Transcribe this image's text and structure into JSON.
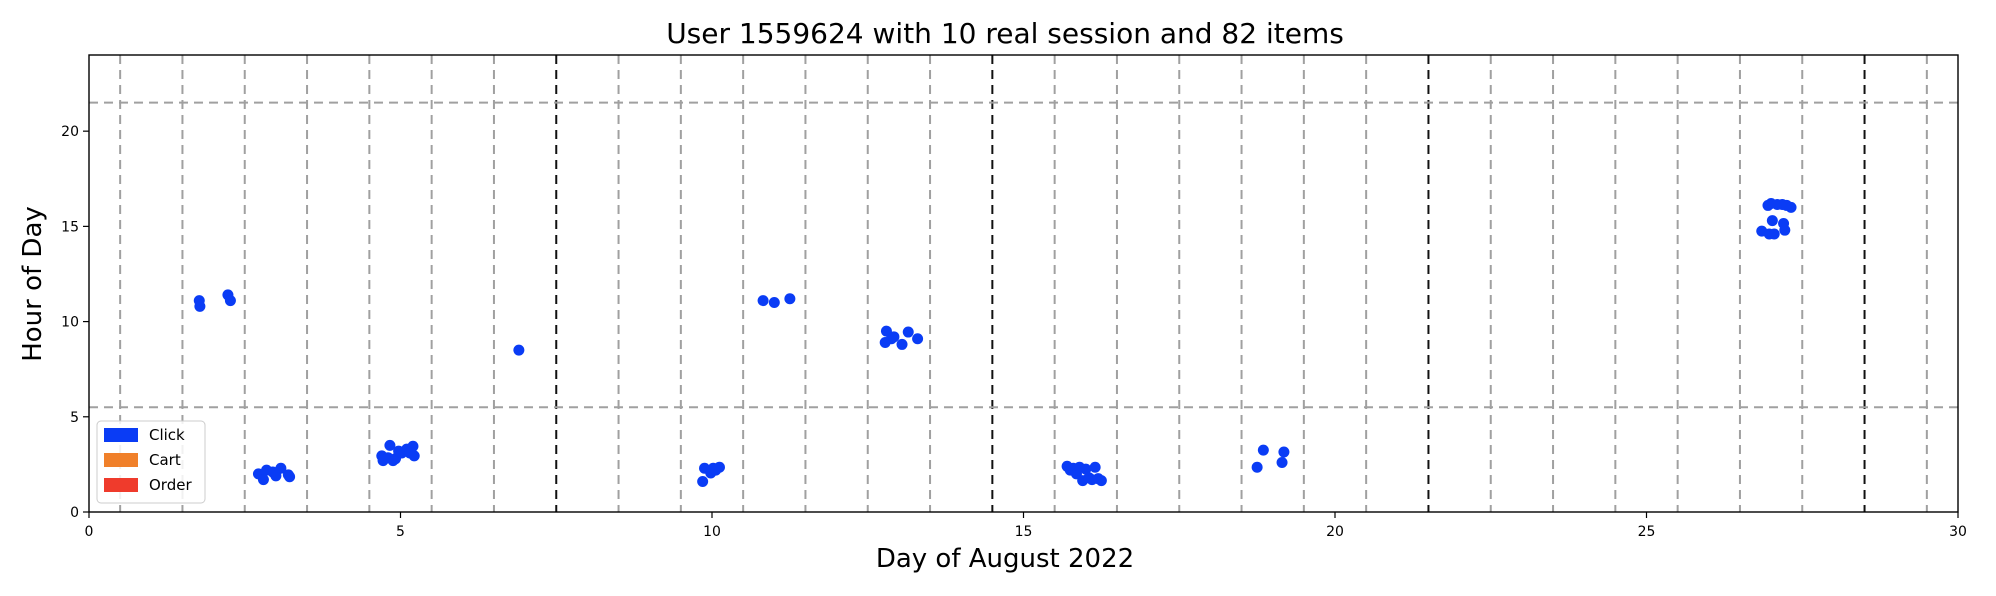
{
  "chart_data": {
    "type": "scatter",
    "title": "User 1559624 with 10 real session and 82 items",
    "xlabel": "Day of August 2022",
    "ylabel": "Hour of Day",
    "xlim": [
      0,
      30
    ],
    "ylim": [
      0,
      24
    ],
    "xticks": [
      0,
      5,
      10,
      15,
      20,
      25,
      30
    ],
    "yticks": [
      0,
      5,
      10,
      15,
      20
    ],
    "grid": {
      "vertical_dashed_gray_days": [
        0.5,
        1.5,
        2.5,
        3.5,
        4.5,
        5.5,
        6.5,
        8.5,
        9.5,
        10.5,
        11.5,
        12.5,
        13.5,
        15.5,
        16.5,
        17.5,
        18.5,
        19.5,
        20.5,
        22.5,
        23.5,
        24.5,
        25.5,
        26.5,
        27.5,
        29.5
      ],
      "vertical_dashed_black_days": [
        7.5,
        14.5,
        21.5,
        28.5
      ],
      "horizontal_dashed_gray_hours": [
        5.5,
        21.5
      ]
    },
    "legend": {
      "placement": "lower-left",
      "entries": [
        {
          "label": "Click",
          "color": "#0a3cf5"
        },
        {
          "label": "Cart",
          "color": "#f0802a"
        },
        {
          "label": "Order",
          "color": "#ef3b2c"
        }
      ]
    },
    "series": [
      {
        "name": "Click",
        "color": "#0a3cf5",
        "points": [
          [
            1.77,
            11.1
          ],
          [
            1.78,
            10.8
          ],
          [
            2.23,
            11.4
          ],
          [
            2.27,
            11.1
          ],
          [
            2.72,
            2.0
          ],
          [
            2.8,
            1.7
          ],
          [
            2.85,
            2.2
          ],
          [
            2.95,
            2.1
          ],
          [
            3.0,
            1.9
          ],
          [
            3.08,
            2.3
          ],
          [
            3.2,
            1.95
          ],
          [
            3.22,
            1.85
          ],
          [
            4.7,
            2.95
          ],
          [
            4.72,
            2.7
          ],
          [
            4.8,
            2.85
          ],
          [
            4.83,
            3.5
          ],
          [
            4.88,
            2.7
          ],
          [
            4.92,
            2.8
          ],
          [
            4.97,
            3.2
          ],
          [
            5.02,
            3.1
          ],
          [
            5.1,
            3.3
          ],
          [
            5.15,
            3.1
          ],
          [
            5.2,
            3.45
          ],
          [
            5.22,
            2.95
          ],
          [
            6.9,
            8.5
          ],
          [
            9.85,
            1.6
          ],
          [
            9.88,
            2.3
          ],
          [
            9.98,
            2.05
          ],
          [
            10.02,
            2.3
          ],
          [
            10.06,
            2.2
          ],
          [
            10.12,
            2.35
          ],
          [
            10.82,
            11.1
          ],
          [
            11.0,
            11.0
          ],
          [
            11.25,
            11.2
          ],
          [
            12.78,
            8.9
          ],
          [
            12.8,
            9.5
          ],
          [
            12.88,
            9.1
          ],
          [
            12.92,
            9.2
          ],
          [
            13.05,
            8.8
          ],
          [
            13.15,
            9.45
          ],
          [
            13.3,
            9.1
          ],
          [
            15.7,
            2.4
          ],
          [
            15.75,
            2.2
          ],
          [
            15.8,
            2.3
          ],
          [
            15.85,
            2.0
          ],
          [
            15.9,
            2.35
          ],
          [
            15.95,
            1.65
          ],
          [
            16.0,
            2.25
          ],
          [
            16.05,
            1.8
          ],
          [
            16.1,
            1.7
          ],
          [
            16.15,
            2.35
          ],
          [
            16.2,
            1.75
          ],
          [
            16.25,
            1.65
          ],
          [
            18.75,
            2.35
          ],
          [
            18.85,
            3.25
          ],
          [
            19.15,
            2.6
          ],
          [
            19.18,
            3.15
          ],
          [
            26.85,
            14.75
          ],
          [
            26.95,
            16.1
          ],
          [
            26.97,
            14.6
          ],
          [
            27.0,
            16.2
          ],
          [
            27.02,
            15.3
          ],
          [
            27.05,
            14.6
          ],
          [
            27.1,
            16.15
          ],
          [
            27.18,
            16.15
          ],
          [
            27.2,
            15.15
          ],
          [
            27.22,
            14.8
          ],
          [
            27.25,
            16.1
          ],
          [
            27.32,
            16.0
          ]
        ]
      },
      {
        "name": "Cart",
        "color": "#f0802a",
        "points": []
      },
      {
        "name": "Order",
        "color": "#ef3b2c",
        "points": []
      }
    ]
  }
}
